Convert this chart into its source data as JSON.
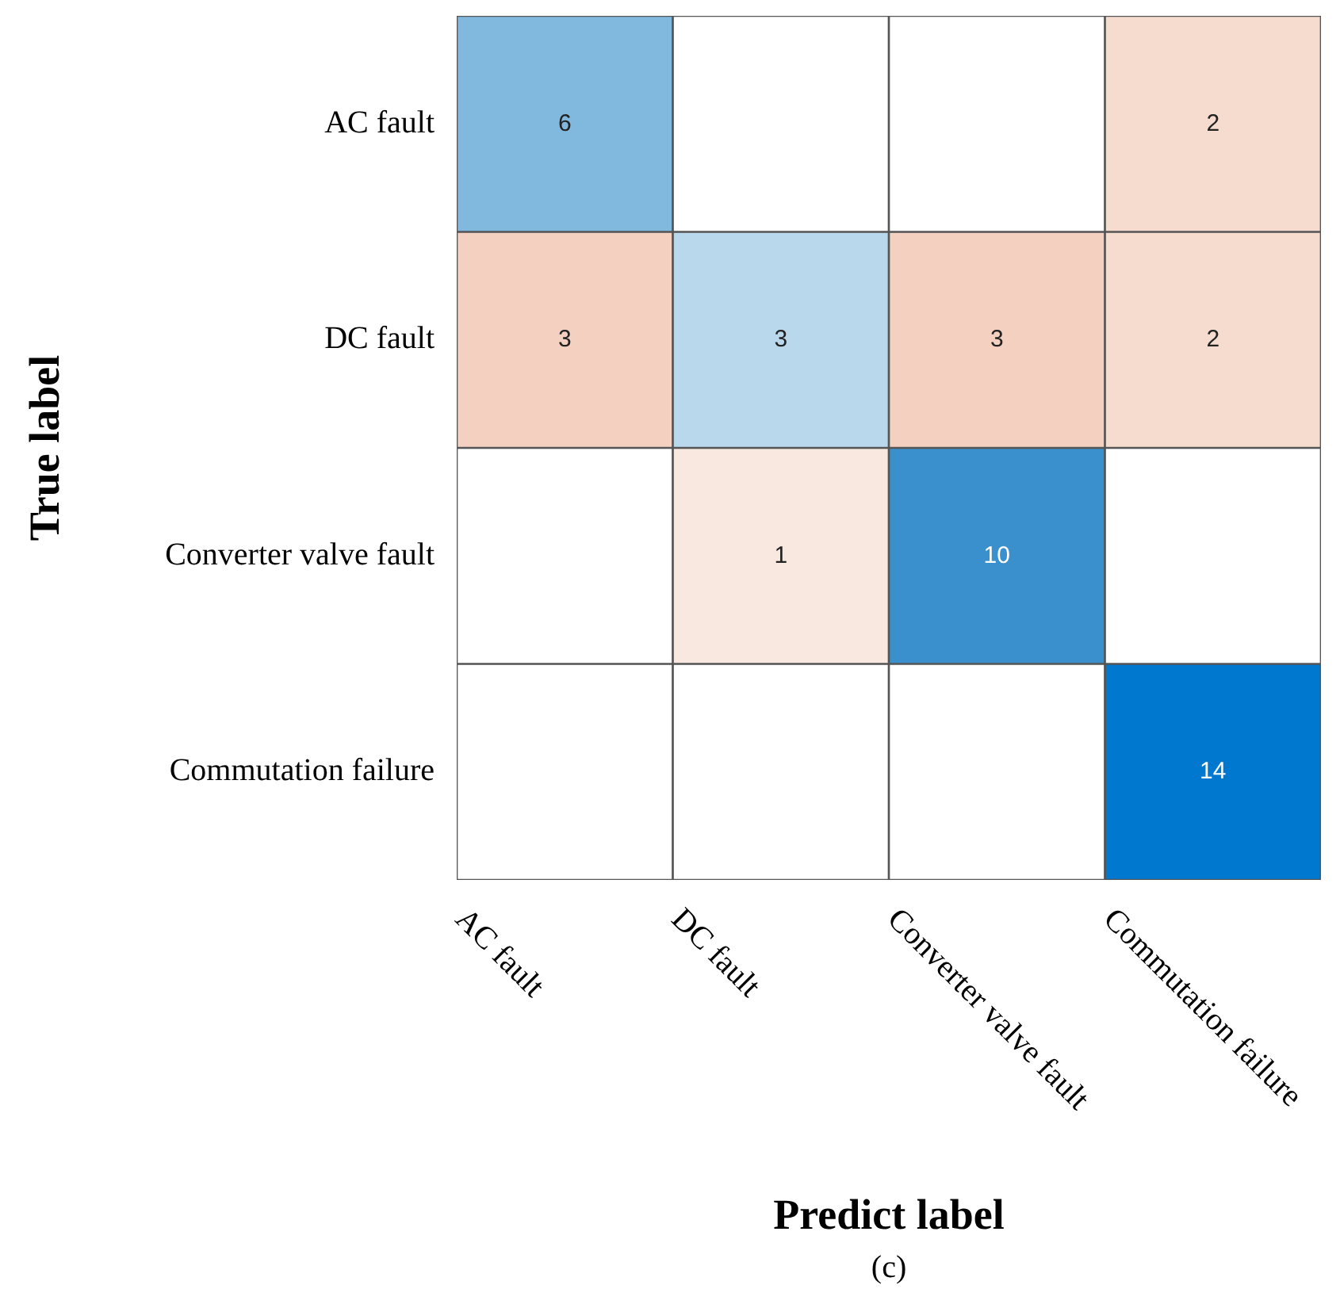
{
  "chart_data": {
    "type": "heatmap",
    "xlabel": "Predict label",
    "ylabel": "True label",
    "annotations": [
      "(c)"
    ],
    "data_labels": true,
    "categories": [
      "AC fault",
      "DC fault",
      "Converter valve fault",
      "Commutation failure"
    ],
    "y_categories": [
      "AC fault",
      "DC fault",
      "Converter valve fault",
      "Commutation failure"
    ],
    "cells": [
      [
        6,
        null,
        null,
        2
      ],
      [
        3,
        3,
        3,
        2
      ],
      [
        null,
        1,
        10,
        null
      ],
      [
        null,
        null,
        null,
        14
      ]
    ],
    "colors": [
      [
        "#80b8de",
        "#ffffff",
        "#ffffff",
        "#f6dccf"
      ],
      [
        "#f3d0c0",
        "#b9d8ec",
        "#f3d0c0",
        "#f6dccf"
      ],
      [
        "#ffffff",
        "#f9e8e0",
        "#3a90cc",
        "#ffffff"
      ],
      [
        "#ffffff",
        "#ffffff",
        "#ffffff",
        "#0078d0"
      ]
    ]
  }
}
